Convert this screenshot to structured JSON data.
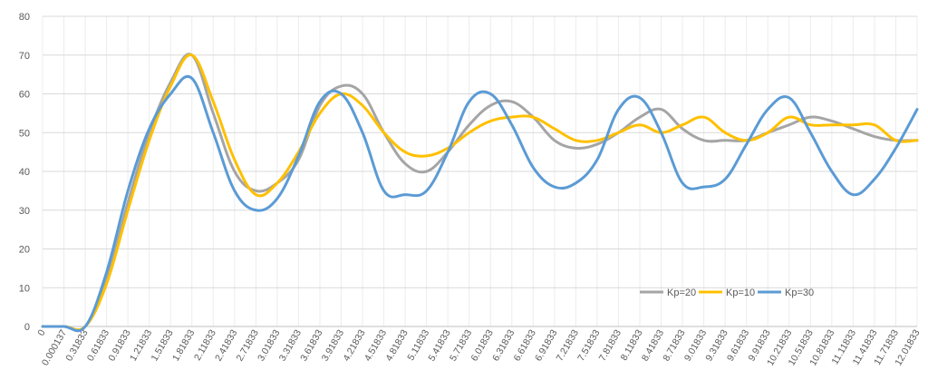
{
  "chart_data": {
    "type": "line",
    "x": [
      "0",
      "0.000137",
      "0.31833",
      "0.61833",
      "0.91833",
      "1.21833",
      "1.51833",
      "1.81833",
      "2.11833",
      "2.41833",
      "2.71833",
      "3.01833",
      "3.31833",
      "3.61833",
      "3.91833",
      "4.21833",
      "4.51833",
      "4.81833",
      "5.11833",
      "5.41833",
      "5.71833",
      "6.01833",
      "6.31833",
      "6.61833",
      "6.91833",
      "7.21833",
      "7.51833",
      "7.81833",
      "8.11833",
      "8.41833",
      "8.71833",
      "9.01833",
      "9.31833",
      "9.61833",
      "9.91833",
      "10.21833",
      "10.51833",
      "10.81833",
      "11.11833",
      "11.41833",
      "11.71833",
      "12.01833"
    ],
    "x_labels_shown": [
      "0",
      "0.000137",
      "0.31833",
      "0.61833",
      "0.91833",
      "1.21833",
      "1.51833",
      "1.81833",
      "2.11833",
      "2.41833",
      "2.71833",
      "3.01833",
      "3.31833",
      "3.61833",
      "3.91833",
      "4.21833",
      "4.51833",
      "4.81833",
      "5.11833",
      "5.41833",
      "5.71833",
      "6.01833",
      "6.31833",
      "6.61833",
      "6.91833",
      "7.21833",
      "7.51833",
      "7.81833",
      "8.11833",
      "8.41833",
      "8.71833",
      "9.01833",
      "9.31833",
      "9.61833",
      "9.91833",
      "10.21833",
      "10.51833",
      "10.81833",
      "11.11833",
      "11.41833",
      "11.71833",
      "12.01833"
    ],
    "x_labels_display": [
      "0",
      "0.000137",
      "0.31833",
      "0.61833",
      "0.91833",
      "1.21833",
      "1.51833",
      "1.81833",
      "2.11833",
      "2.41833",
      "2.71833",
      "3.01833",
      "3.31833",
      "3.61833",
      "3.91833",
      "4.21833",
      "4.51833",
      "4.81833",
      "5.11833",
      "5.41833",
      "5.71833",
      "6.01833",
      "6.31833",
      "6.61833",
      "6.91833",
      "7.21833",
      "7.51833",
      "7.81833",
      "8.11833",
      "8.41833",
      "8.71833",
      "9.01833",
      "9.31833",
      "9.61833",
      "9.91833",
      "10.21833",
      "10.51833",
      "10.81833",
      "11.11833",
      "11.41833",
      "11.71833",
      "12.01833"
    ],
    "ylim": [
      0,
      80
    ],
    "yticks": [
      "0",
      "10",
      "20",
      "30",
      "40",
      "50",
      "60",
      "70",
      "80"
    ],
    "grid": true,
    "legend_position": "bottom-right",
    "series": [
      {
        "name": "Kp=20",
        "color": "#a5a5a5",
        "values": [
          0,
          0,
          0,
          12,
          32,
          50,
          63,
          70,
          55,
          40,
          35,
          37,
          43,
          57,
          62,
          60,
          50,
          42,
          40,
          45,
          52,
          57,
          58,
          54,
          48,
          46,
          47,
          50,
          54,
          56,
          51,
          48,
          48,
          48,
          50,
          52,
          54,
          53,
          51,
          49,
          48,
          48
        ]
      },
      {
        "name": "Kp=10",
        "color": "#ffc000",
        "values": [
          0,
          0,
          0,
          11,
          30,
          48,
          62,
          70,
          58,
          43,
          34,
          37,
          45,
          55,
          60,
          57,
          50,
          45,
          44,
          46,
          50,
          53,
          54,
          54,
          51,
          48,
          48,
          50,
          52,
          50,
          52,
          54,
          50,
          48,
          50,
          54,
          52,
          52,
          52,
          52,
          48,
          48
        ]
      },
      {
        "name": "Kp=30",
        "color": "#5b9bd5",
        "values": [
          0,
          0,
          0,
          14,
          35,
          51,
          60,
          64,
          50,
          35,
          30,
          33,
          44,
          58,
          60,
          50,
          35,
          34,
          35,
          45,
          58,
          60,
          52,
          41,
          36,
          37,
          43,
          56,
          59,
          50,
          37,
          36,
          38,
          47,
          56,
          59,
          50,
          40,
          34,
          38,
          46,
          56
        ]
      }
    ]
  }
}
